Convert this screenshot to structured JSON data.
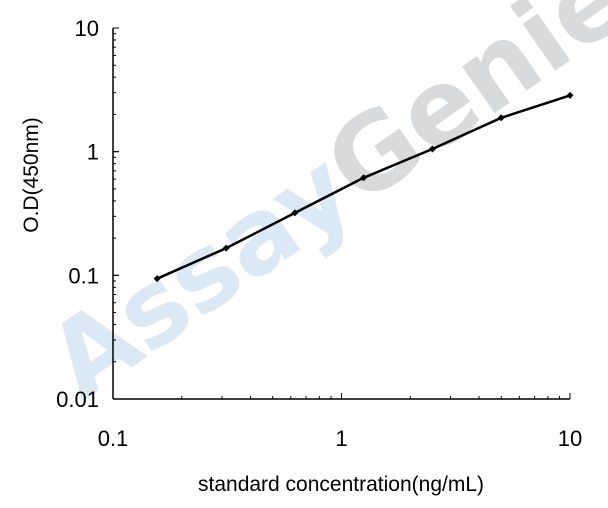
{
  "chart_data": {
    "type": "line",
    "title": "",
    "xlabel": "standard concentration(ng/mL)",
    "ylabel": "O.D(450nm)",
    "x_scale": "log",
    "y_scale": "log",
    "xlim": [
      0.1,
      10
    ],
    "ylim": [
      0.01,
      10
    ],
    "x_ticks": [
      "0.1",
      "1",
      "10"
    ],
    "y_ticks": [
      "0.01",
      "0.1",
      "1",
      "10"
    ],
    "grid": false,
    "legend": "none",
    "series": [
      {
        "x": [
          0.156,
          0.313,
          0.625,
          1.25,
          2.5,
          5,
          10
        ],
        "y": [
          0.094,
          0.166,
          0.32,
          0.615,
          1.05,
          1.88,
          2.85
        ]
      }
    ],
    "watermark": "AssayGenie",
    "colors": {
      "line": "#000000",
      "watermark_assay": "#dbe9f4",
      "watermark_genie": "#d9dadc"
    }
  }
}
